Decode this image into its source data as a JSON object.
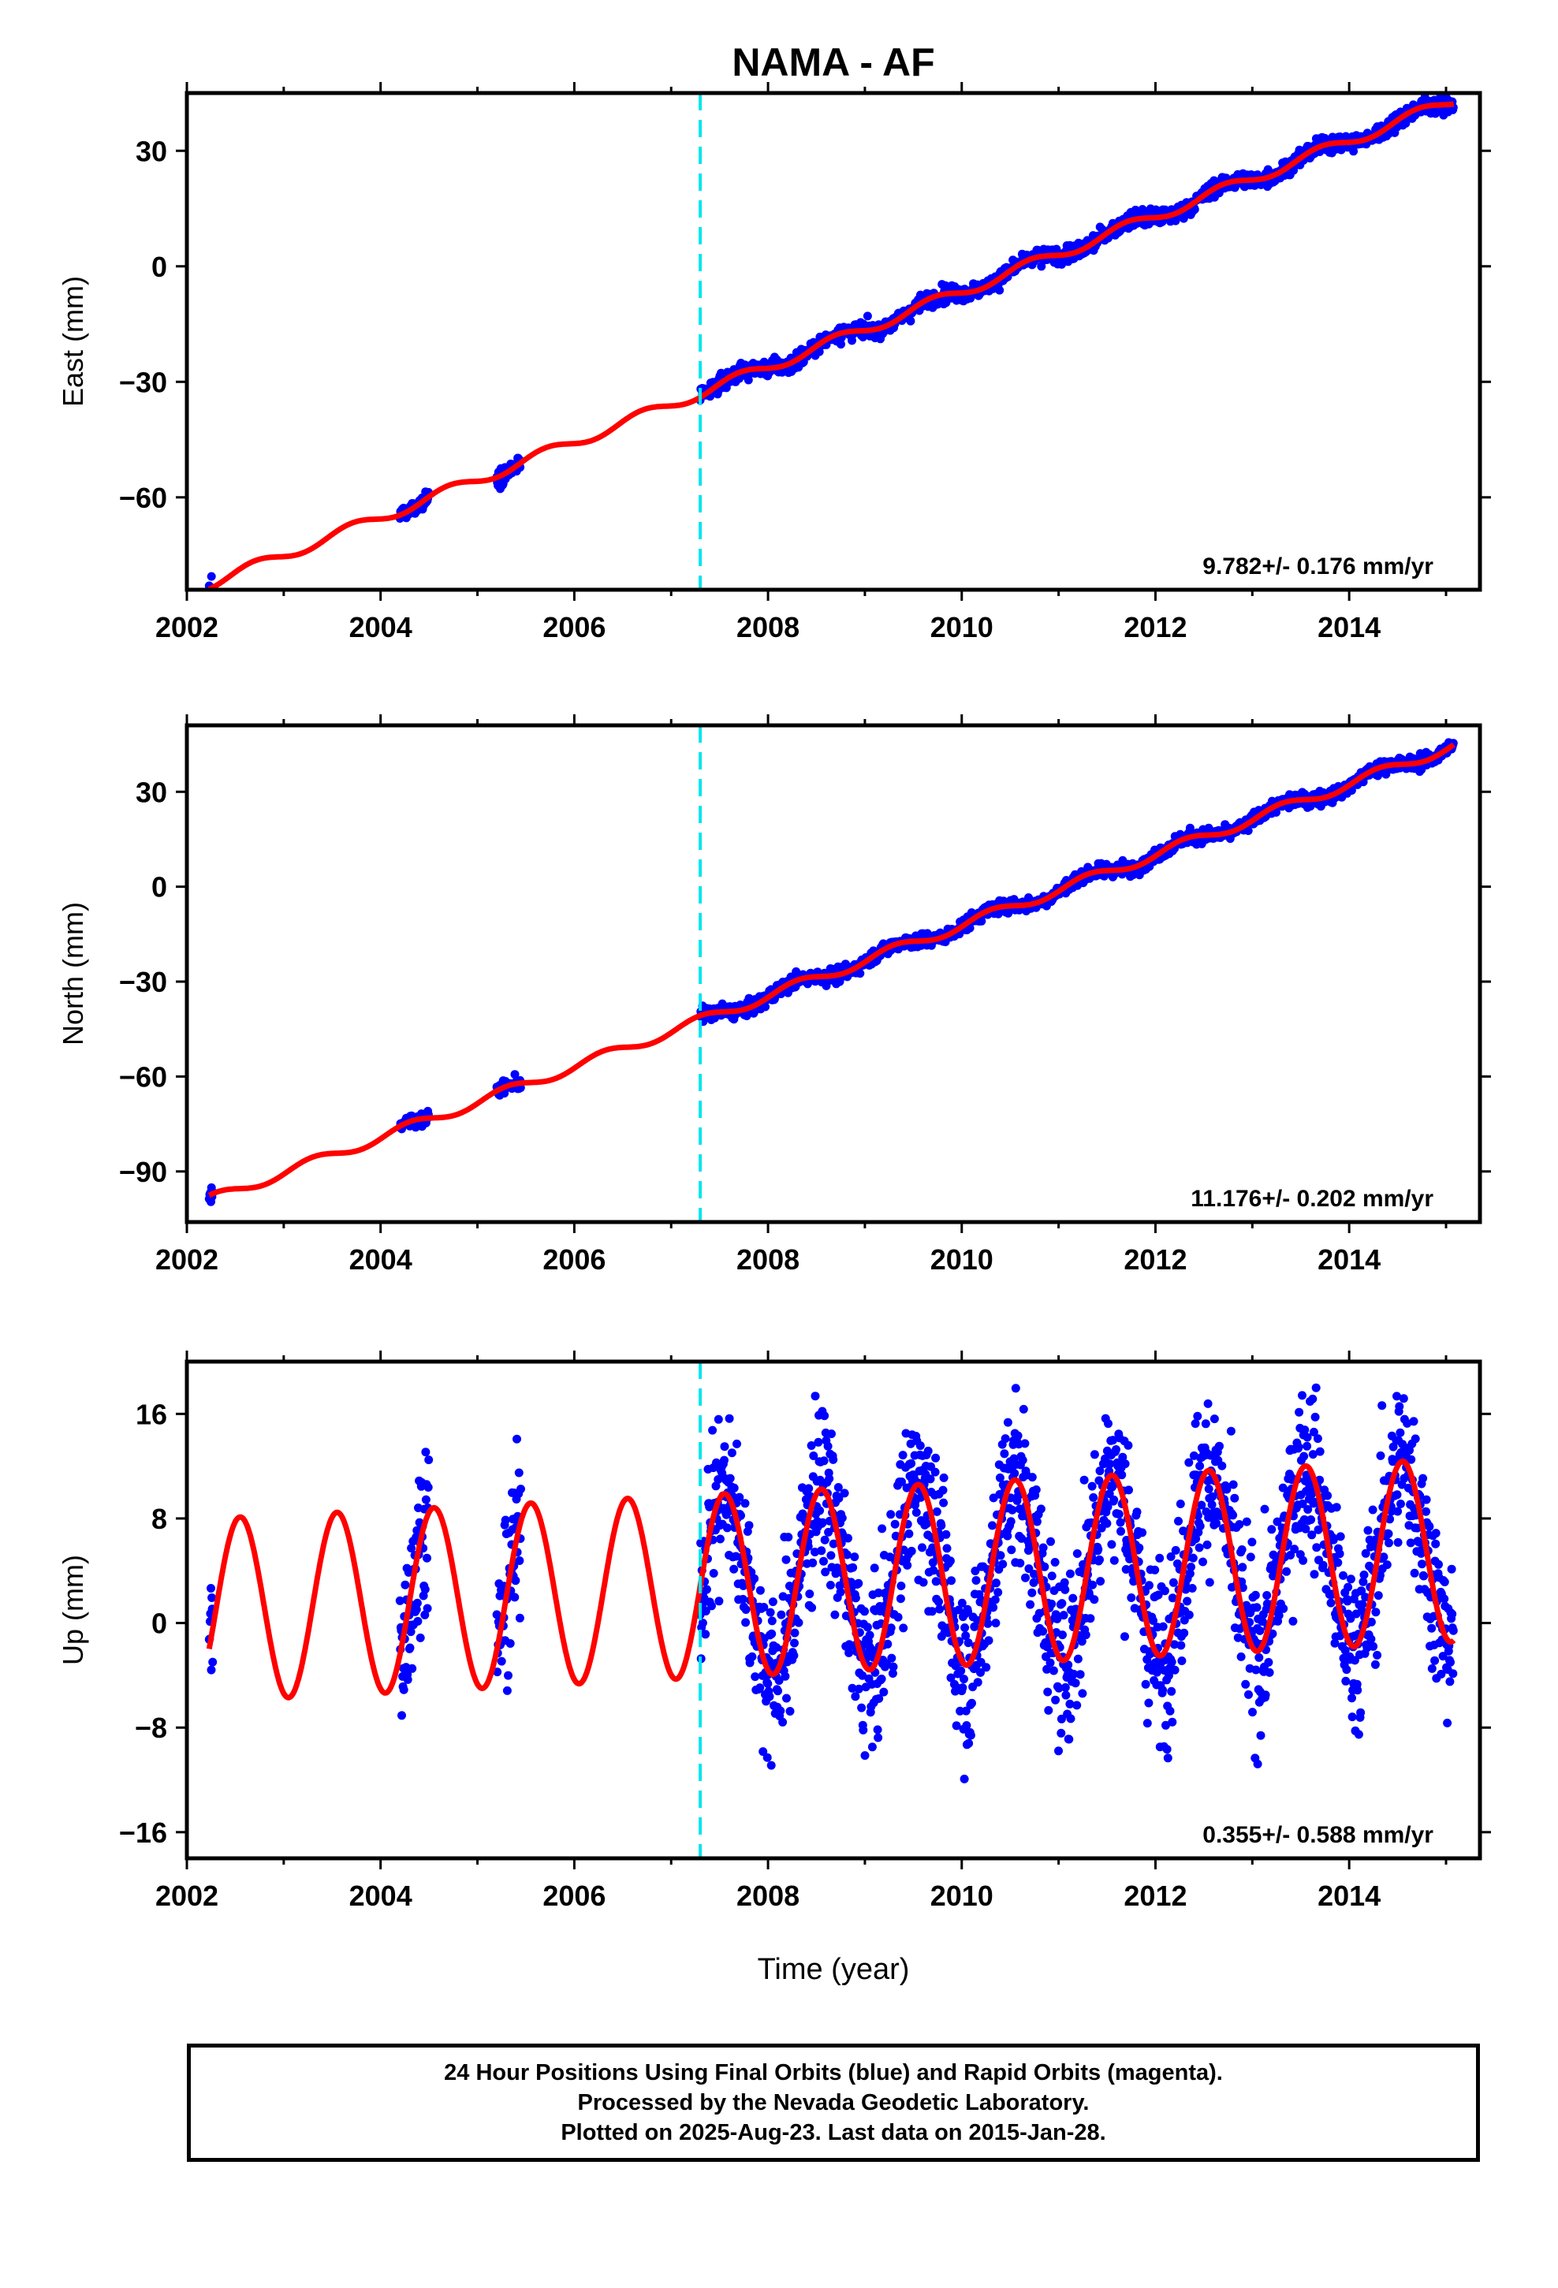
{
  "colors": {
    "final_orbits": "#0000ff",
    "model": "#ff0000",
    "break_line": "#00e5ee"
  },
  "chart_data": {
    "title": "NAMA - AF",
    "type": "scatter",
    "xlabel": "Time (year)",
    "xlim": [
      2002.0,
      2015.35
    ],
    "xticks": [
      2002,
      2004,
      2006,
      2008,
      2010,
      2012,
      2014
    ],
    "break_epoch": 2007.3,
    "data_span": [
      2002.23,
      2015.08
    ],
    "panels": [
      {
        "ylabel": "East (mm)",
        "ylim": [
          -84,
          45
        ],
        "yticks": [
          30,
          0,
          -30,
          -60
        ],
        "ytick_labels": [
          "30",
          "0",
          "−30",
          "−60"
        ],
        "rate": "9.782+/- 0.176 mm/yr",
        "model": {
          "offset": -82.5,
          "velocity": 9.782,
          "seasonal_amplitude": 1.4,
          "seasonal_phase": 0.45,
          "scatter": 1.5
        }
      },
      {
        "ylabel": "North (mm)",
        "ylim": [
          -106,
          51
        ],
        "yticks": [
          30,
          0,
          -30,
          -60,
          -90
        ],
        "ytick_labels": [
          "30",
          "0",
          "−30",
          "−60",
          "−90"
        ],
        "rate": "11.176+/- 0.202 mm/yr",
        "model": {
          "offset": -99.0,
          "velocity": 11.176,
          "seasonal_amplitude": 1.6,
          "seasonal_phase": 0.05,
          "scatter": 1.6
        }
      },
      {
        "ylabel": "Up (mm)",
        "ylim": [
          -18,
          20
        ],
        "yticks": [
          16,
          8,
          0,
          -8,
          -16
        ],
        "ytick_labels": [
          "16",
          "8",
          "0",
          "−8",
          "−16"
        ],
        "rate": "0.355+/- 0.588 mm/yr",
        "model": {
          "offset": 1.0,
          "velocity": 0.355,
          "seasonal_amplitude": 7.0,
          "seasonal_phase": 0.3,
          "scatter": 4.5
        }
      }
    ],
    "data_segments": [
      [
        2002.23,
        2002.27
      ],
      [
        2004.2,
        2004.5
      ],
      [
        2005.2,
        2005.45
      ],
      [
        2007.3,
        2015.08
      ]
    ],
    "notes": [
      "24 Hour Positions Using Final Orbits (blue) and Rapid Orbits (magenta).",
      "Processed by the Nevada Geodetic Laboratory.",
      "Plotted on 2025-Aug-23. Last data on 2015-Jan-28."
    ]
  }
}
